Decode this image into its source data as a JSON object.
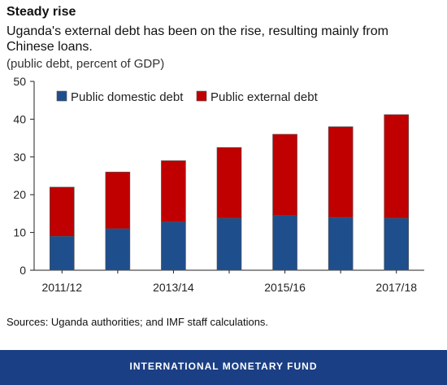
{
  "header": {
    "title": "Steady rise",
    "subtitle": "Uganda's external debt has been on the rise, resulting mainly from Chinese loans.",
    "units": "(public debt, percent of GDP)"
  },
  "source": "Sources: Uganda authorities; and IMF staff calculations.",
  "footer": {
    "text": "INTERNATIONAL MONETARY FUND",
    "color": "#1b3f84"
  },
  "chart_data": {
    "type": "bar",
    "stacked": true,
    "categories": [
      "2011/12",
      "2012/13",
      "2013/14",
      "2014/15",
      "2015/16",
      "2016/17",
      "2017/18"
    ],
    "category_tick_labels": [
      "2011/12",
      "",
      "2013/14",
      "",
      "2015/16",
      "",
      "2017/18"
    ],
    "series": [
      {
        "name": "Public domestic debt",
        "color": "#1f4e8c",
        "values": [
          9,
          11,
          12.8,
          13.8,
          14.5,
          14,
          13.8
        ]
      },
      {
        "name": "Public external debt",
        "color": "#c00000",
        "values": [
          13,
          15,
          16.2,
          18.7,
          21.5,
          24,
          27.4
        ]
      }
    ],
    "ylim": [
      0,
      50
    ],
    "yticks": [
      0,
      10,
      20,
      30,
      40,
      50
    ],
    "legend_position": "top"
  }
}
